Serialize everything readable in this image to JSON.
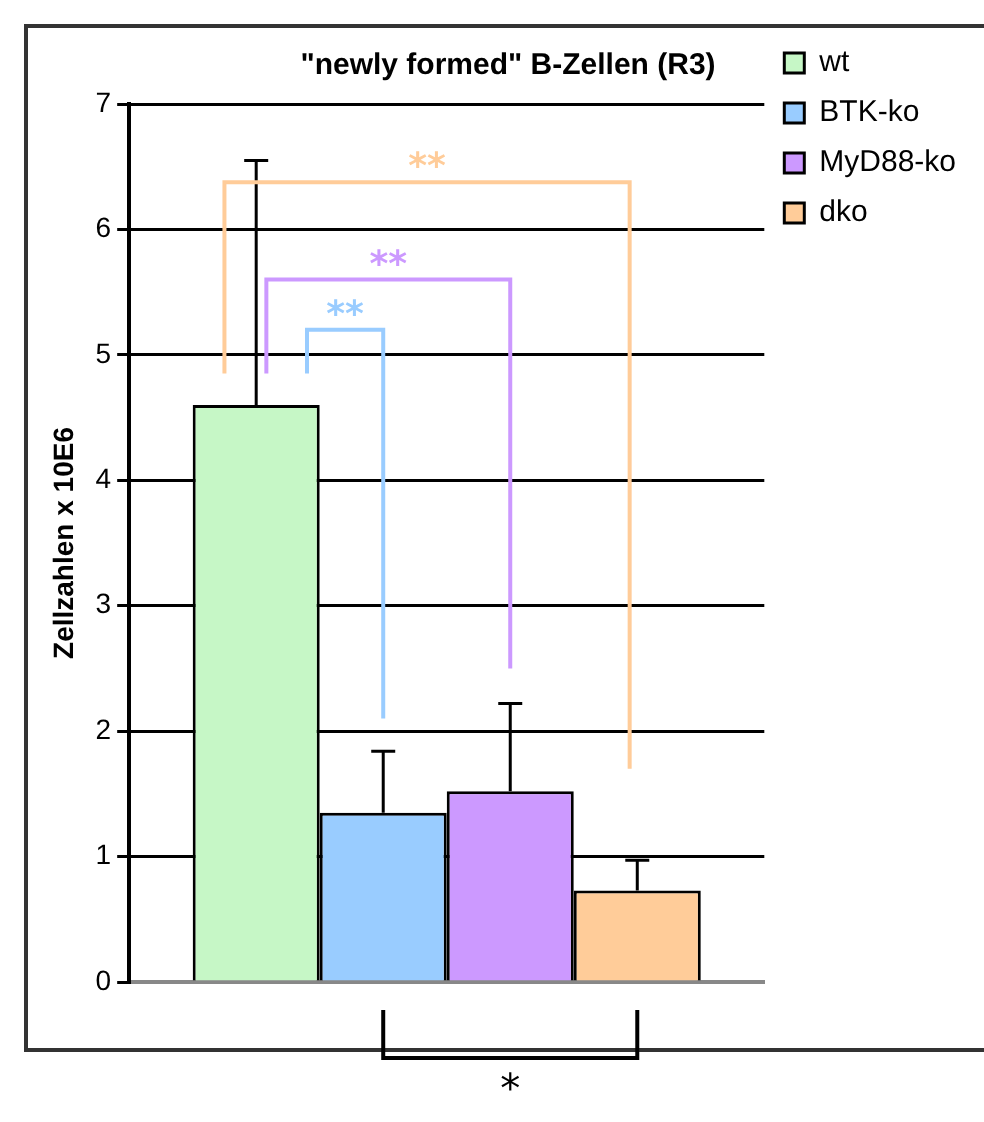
{
  "chart_data": {
    "type": "bar",
    "title": "\"newly formed\" B-Zellen (R3)",
    "ylabel": "Zellzahlen x 10E6",
    "categories": [
      null
    ],
    "series": [
      {
        "name": "wt",
        "color": "#c6f7c6",
        "values": [
          4.6
        ],
        "errors": [
          [
            4.6,
            6.55
          ]
        ]
      },
      {
        "name": "BTK-ko",
        "color": "#99ccff",
        "values": [
          1.35
        ],
        "errors": [
          [
            1.35,
            1.84
          ]
        ]
      },
      {
        "name": "MyD88-ko",
        "color": "#cc99ff",
        "values": [
          1.52
        ],
        "errors": [
          [
            1.52,
            2.22
          ]
        ]
      },
      {
        "name": "dko",
        "color": "#ffcc99",
        "values": [
          0.73
        ],
        "errors": [
          [
            0.73,
            0.97
          ]
        ]
      }
    ],
    "ylim": [
      0,
      7
    ],
    "yticks": [
      0,
      1,
      2,
      3,
      4,
      5,
      6,
      7
    ],
    "grid": "y",
    "legend": "top right",
    "tick_labels": "y",
    "annotations": [
      "**",
      "**",
      "**",
      "*"
    ]
  }
}
